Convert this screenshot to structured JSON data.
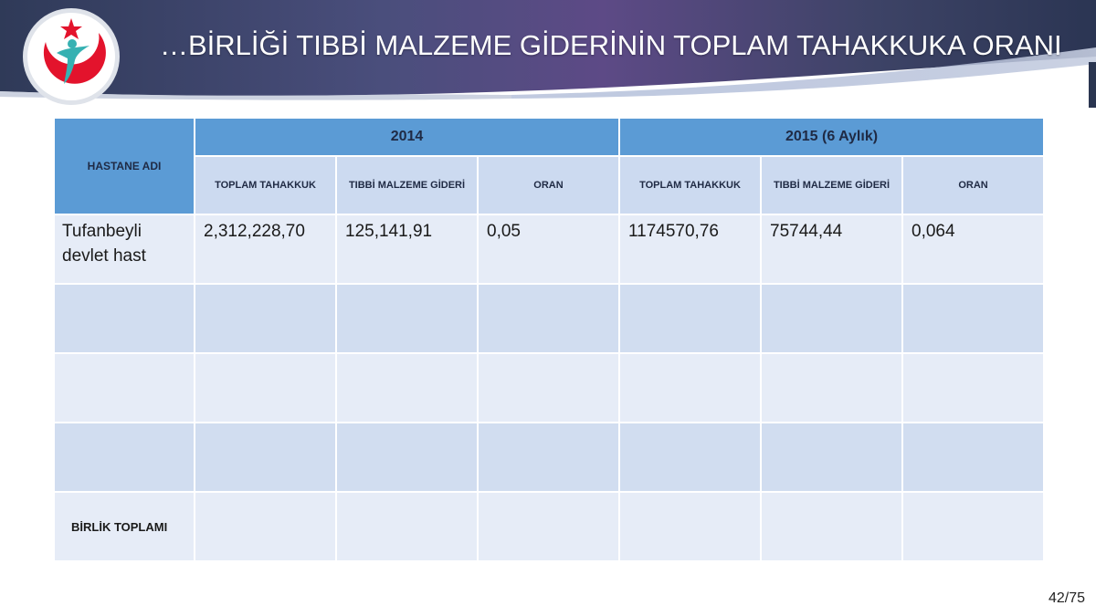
{
  "header": {
    "title": "…BİRLİĞİ TIBBİ MALZEME GİDERİNİN TOPLAM TAHAKKUKA ORANI",
    "logo_icon": "ministry-of-health-logo-icon",
    "colors": {
      "banner_dark": "#2b3553",
      "banner_purple": "#5d4a86",
      "logo_red": "#e3132c",
      "logo_teal": "#36b1b2"
    }
  },
  "table": {
    "hospital_col": "HASTANE ADI",
    "years": [
      "2014",
      "2015 (6 Aylık)"
    ],
    "subcols": [
      "TOPLAM TAHAKKUK",
      "TIBBİ MALZEME GİDERİ",
      "ORAN",
      "TOPLAM TAHAKKUK",
      "TIBBİ MALZEME GİDERİ",
      "ORAN"
    ],
    "rows": [
      {
        "name": "Tufanbeyli devlet hast",
        "cells": [
          "2,312,228,70",
          "125,141,91",
          "0,05",
          "1174570,76",
          "75744,44",
          "0,064"
        ]
      },
      {
        "name": "",
        "cells": [
          "",
          "",
          "",
          "",
          "",
          ""
        ]
      },
      {
        "name": "",
        "cells": [
          "",
          "",
          "",
          "",
          "",
          ""
        ]
      },
      {
        "name": "",
        "cells": [
          "",
          "",
          "",
          "",
          "",
          ""
        ]
      }
    ],
    "total_label": "BİRLİK TOPLAMI",
    "header_color": "#5b9bd5",
    "row_colors": [
      "#e6ecf7",
      "#d1ddf0"
    ]
  },
  "footer": {
    "page": "42/75"
  }
}
